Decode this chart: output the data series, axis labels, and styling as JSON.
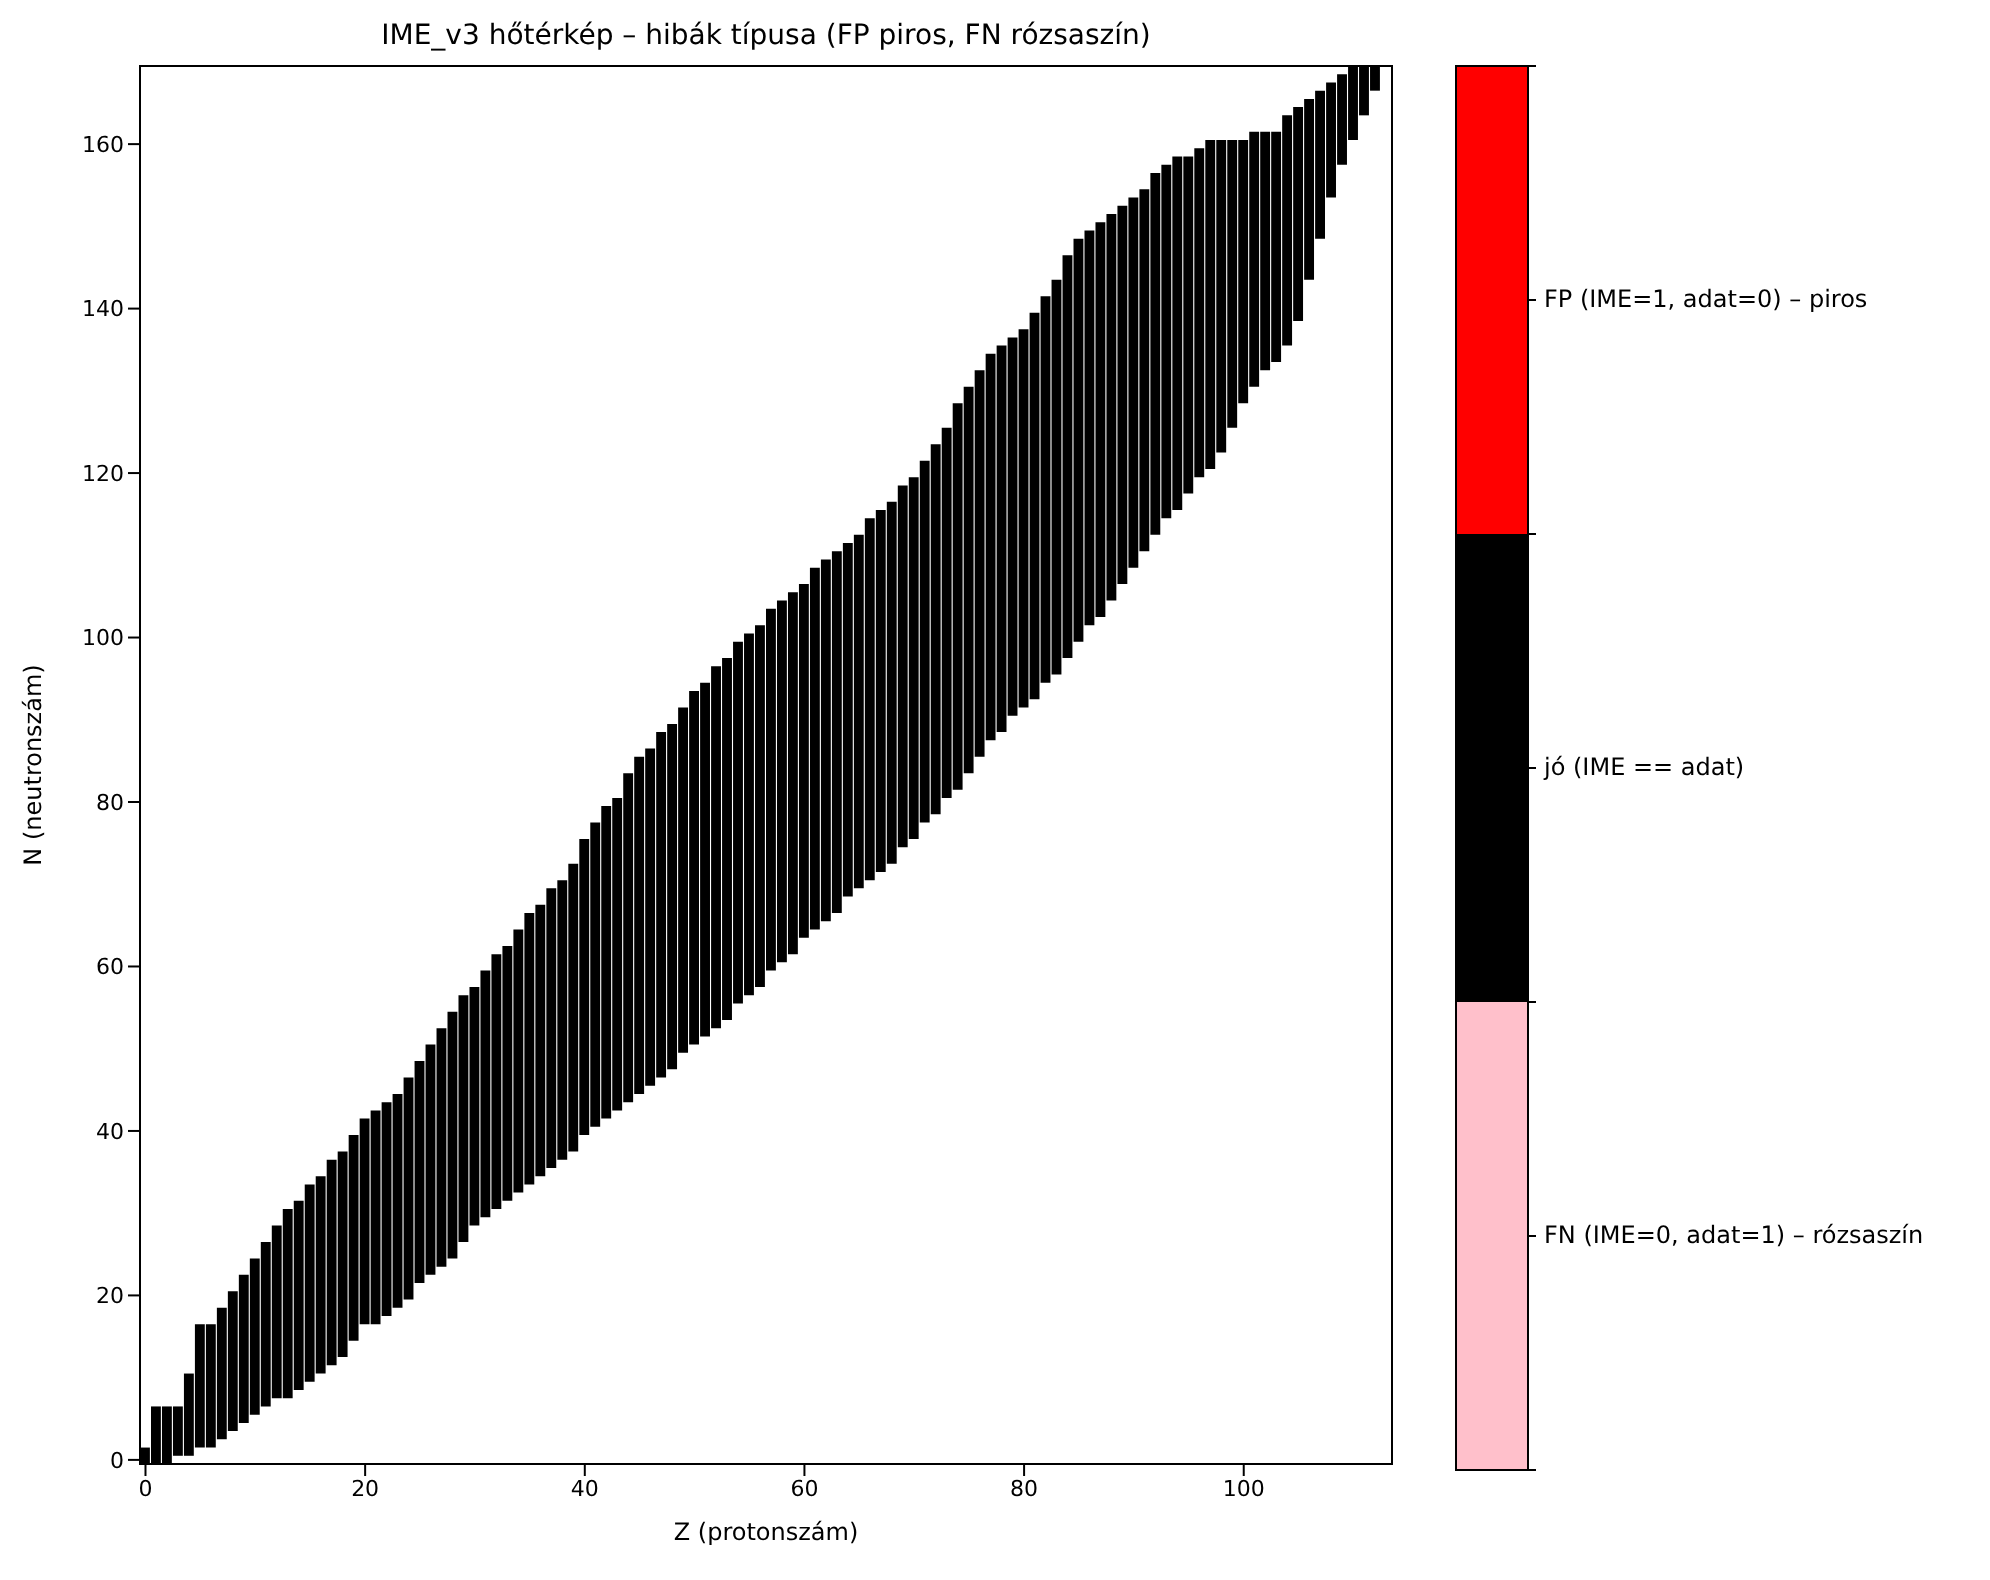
{
  "chart_data": [
    {
      "type": "bar",
      "title": "IME_v3 hőtérkép – hibák típusa (FP piros, FN rózsaszín)",
      "xlabel": "Z (protonszám)",
      "ylabel": "N (neutronszám)",
      "color": "#000000",
      "x": [
        0,
        1,
        2,
        3,
        4,
        5,
        6,
        7,
        8,
        9,
        10,
        11,
        12,
        13,
        14,
        15,
        16,
        17,
        18,
        19,
        20,
        21,
        22,
        23,
        24,
        25,
        26,
        27,
        28,
        29,
        30,
        31,
        32,
        33,
        34,
        35,
        36,
        37,
        38,
        39,
        40,
        41,
        42,
        43,
        44,
        45,
        46,
        47,
        48,
        49,
        50,
        51,
        52,
        53,
        54,
        55,
        56,
        57,
        58,
        59,
        60,
        61,
        62,
        63,
        64,
        65,
        66,
        67,
        68,
        69,
        70,
        71,
        72,
        73,
        74,
        75,
        76,
        77,
        78,
        79,
        80,
        81,
        82,
        83,
        84,
        85,
        86,
        87,
        88,
        89,
        90,
        91,
        92,
        93,
        94,
        95,
        96,
        97,
        98,
        99,
        100,
        101,
        102,
        103,
        104,
        105,
        106,
        107,
        108,
        109,
        110,
        111,
        112
      ],
      "base": [
        -0.5,
        -0.5,
        -0.5,
        0.5,
        0.5,
        1.5,
        1.5,
        2.5,
        3.5,
        4.5,
        5.5,
        6.5,
        7.5,
        7.5,
        8.5,
        9.5,
        10.5,
        11.5,
        12.5,
        14.5,
        16.5,
        16.5,
        17.5,
        18.5,
        19.5,
        21.5,
        22.5,
        23.5,
        24.5,
        26.5,
        28.5,
        29.5,
        30.5,
        31.5,
        32.5,
        33.5,
        34.5,
        35.5,
        36.5,
        37.5,
        39.5,
        40.5,
        41.5,
        42.5,
        43.5,
        44.5,
        45.5,
        46.5,
        47.5,
        49.5,
        50.5,
        51.5,
        52.5,
        53.5,
        55.5,
        56.5,
        57.5,
        59.5,
        60.5,
        61.5,
        63.5,
        64.5,
        65.5,
        66.5,
        68.5,
        69.5,
        70.5,
        71.5,
        72.5,
        74.5,
        75.5,
        77.5,
        78.5,
        80.5,
        81.5,
        83.5,
        85.5,
        87.5,
        88.5,
        90.5,
        91.5,
        92.5,
        94.5,
        95.5,
        97.5,
        99.5,
        101.5,
        102.5,
        104.5,
        106.5,
        108.5,
        110.5,
        112.5,
        114.5,
        115.5,
        117.5,
        119.5,
        120.5,
        122.5,
        125.5,
        128.5,
        130.5,
        132.5,
        133.5,
        135.5,
        138.5,
        143.5,
        148.5,
        153.5,
        157.5,
        160.5,
        163.5,
        166.5
      ],
      "values": [
        2,
        7,
        7,
        6,
        10,
        15,
        15,
        16,
        17,
        18,
        19,
        20,
        21,
        23,
        23,
        24,
        24,
        25,
        25,
        25,
        25,
        26,
        26,
        26,
        27,
        27,
        28,
        29,
        30,
        30,
        29,
        30,
        31,
        31,
        32,
        33,
        33,
        34,
        34,
        35,
        36,
        37,
        38,
        38,
        40,
        41,
        41,
        42,
        42,
        42,
        43,
        43,
        44,
        44,
        44,
        44,
        44,
        44,
        44,
        44,
        43,
        44,
        44,
        44,
        43,
        43,
        44,
        44,
        44,
        44,
        44,
        44,
        45,
        45,
        47,
        47,
        47,
        47,
        47,
        46,
        46,
        47,
        47,
        48,
        49,
        49,
        48,
        48,
        47,
        46,
        45,
        44,
        44,
        43,
        43,
        41,
        40,
        40,
        38,
        35,
        32,
        31,
        29,
        28,
        28,
        26,
        22,
        18,
        14,
        11,
        9,
        6,
        3
      ],
      "xlim": [
        -0.5,
        113.5
      ],
      "xticks": [
        0,
        20,
        40,
        60,
        80,
        100
      ],
      "ylim": [
        -0.5,
        169.5
      ],
      "yticks": [
        0,
        20,
        40,
        60,
        80,
        100,
        120,
        140,
        160
      ],
      "grid": false,
      "legend": false
    },
    {
      "type": "other",
      "annotations": [
        "FP (IME=1, adat=0) – piros",
        "jó (IME == adat)",
        "FN (IME=0, adat=1) – rózsaszín"
      ],
      "colors": [
        "#ff0000",
        "#000000",
        "#ffc0cb"
      ]
    }
  ]
}
